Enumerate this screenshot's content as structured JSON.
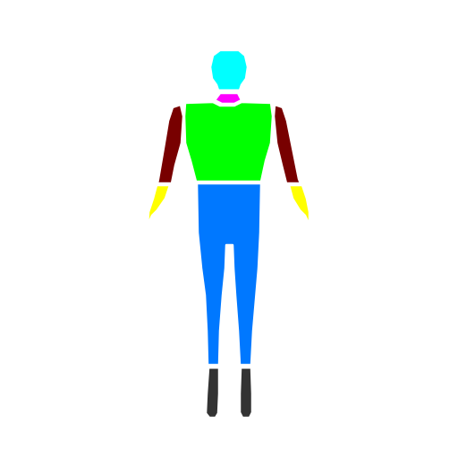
{
  "figure": {
    "colors": {
      "background": "#ffffff",
      "outline": "#ffffff",
      "head": "#00ffff",
      "neck": "#ff00ff",
      "torso": "#00ff00",
      "upper_arms": "#780000",
      "lower_arms": "#ffff00",
      "legs": "#0078ff",
      "feet": "#333333"
    },
    "parts": [
      "head",
      "neck",
      "torso",
      "upper-arm-left",
      "upper-arm-right",
      "lower-arm-left",
      "lower-arm-right",
      "legs",
      "foot-left",
      "foot-right"
    ]
  }
}
